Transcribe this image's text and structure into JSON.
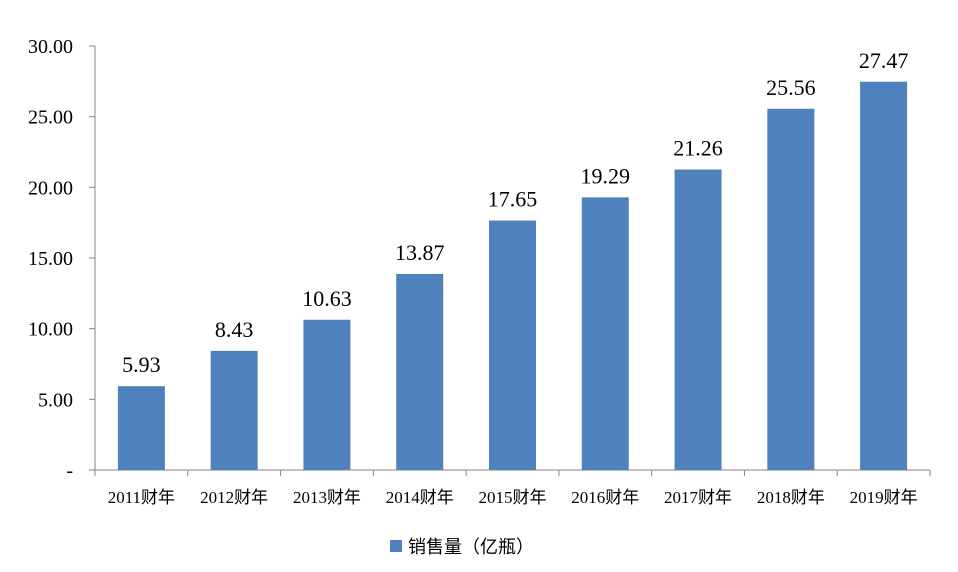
{
  "chart_data": {
    "type": "bar",
    "categories": [
      "2011财年",
      "2012财年",
      "2013财年",
      "2014财年",
      "2015财年",
      "2016财年",
      "2017财年",
      "2018财年",
      "2019财年"
    ],
    "series": [
      {
        "name": "销售量（亿瓶）",
        "values": [
          5.93,
          8.43,
          10.63,
          13.87,
          17.65,
          19.29,
          21.26,
          25.56,
          27.47
        ]
      }
    ],
    "data_labels": [
      "5.93",
      "8.43",
      "10.63",
      "13.87",
      "17.65",
      "19.29",
      "21.26",
      "25.56",
      "27.47"
    ],
    "y_ticks": [
      0,
      5,
      10,
      15,
      20,
      25,
      30
    ],
    "y_tick_labels": [
      "-",
      "5.00",
      "10.00",
      "15.00",
      "20.00",
      "25.00",
      "30.00"
    ],
    "ylim": [
      0,
      30
    ],
    "grid": false,
    "legend": {
      "position": "bottom-center",
      "label": "销售量（亿瓶）"
    },
    "bar_color": "#4f81bd"
  }
}
